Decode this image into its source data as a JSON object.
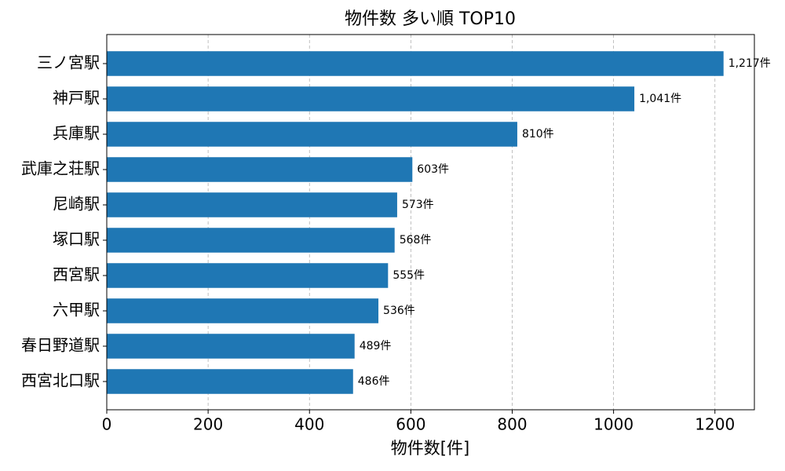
{
  "chart_data": {
    "type": "barh",
    "title": "物件数 多い順 TOP10",
    "xlabel": "物件数[件]",
    "categories": [
      "三ノ宮駅",
      "神戸駅",
      "兵庫駅",
      "武庫之荘駅",
      "尼崎駅",
      "塚口駅",
      "西宮駅",
      "六甲駅",
      "春日野道駅",
      "西宮北口駅"
    ],
    "values": [
      1217,
      1041,
      810,
      603,
      573,
      568,
      555,
      536,
      489,
      486
    ],
    "value_labels": [
      "1,217件",
      "1,041件",
      "810件",
      "603件",
      "573件",
      "568件",
      "555件",
      "536件",
      "489件",
      "486件"
    ],
    "color": "#1f77b4",
    "xlim": [
      0,
      1277.85
    ],
    "xticks": [
      0,
      200,
      400,
      600,
      800,
      1000,
      1200
    ],
    "grid": true
  }
}
